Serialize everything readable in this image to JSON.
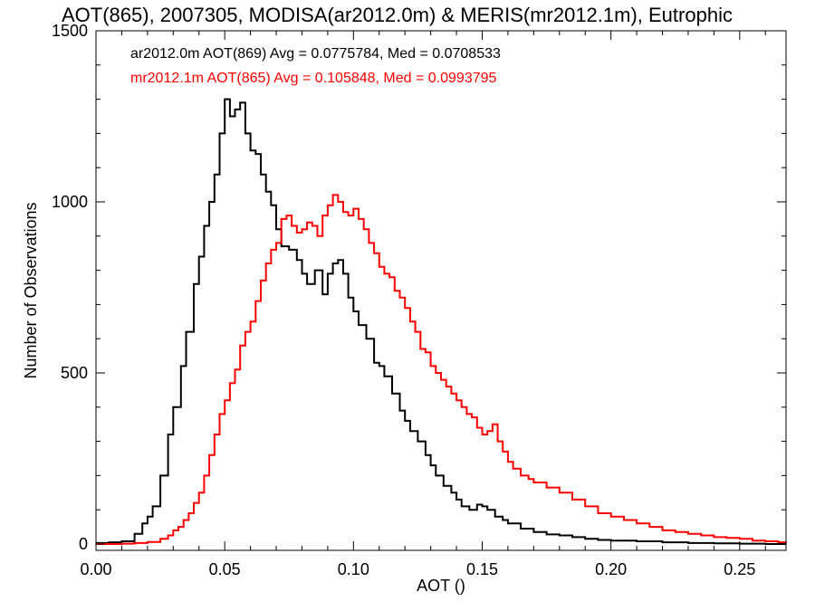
{
  "chart_data": {
    "type": "histogram",
    "title": "AOT(865), 2007305, MODISA(ar2012.0m) & MERIS(mr2012.1m), Eutrophic",
    "xlabel": "AOT ()",
    "ylabel": "Number of Observations",
    "xlim": [
      0.0,
      0.268
    ],
    "ylim": [
      0,
      1500
    ],
    "xticks": [
      0.0,
      0.05,
      0.1,
      0.15,
      0.2,
      0.25
    ],
    "xtick_labels": [
      "0.00",
      "0.05",
      "0.10",
      "0.15",
      "0.20",
      "0.25"
    ],
    "yticks": [
      0,
      500,
      1000,
      1500
    ],
    "ytick_labels": [
      "0",
      "500",
      "1000",
      "1500"
    ],
    "grid": false,
    "legend": [
      {
        "text": "ar2012.0m AOT(869) Avg = 0.0775784, Med = 0.0708533",
        "color": "#000000"
      },
      {
        "text": "mr2012.1m AOT(865) Avg = 0.105848, Med = 0.0993795",
        "color": "#ff0000"
      }
    ],
    "series": [
      {
        "color": "#000000",
        "points": [
          [
            0.0,
            3
          ],
          [
            0.005,
            5
          ],
          [
            0.01,
            8
          ],
          [
            0.015,
            30
          ],
          [
            0.018,
            60
          ],
          [
            0.02,
            80
          ],
          [
            0.022,
            110
          ],
          [
            0.025,
            200
          ],
          [
            0.028,
            320
          ],
          [
            0.03,
            400
          ],
          [
            0.033,
            520
          ],
          [
            0.035,
            620
          ],
          [
            0.038,
            760
          ],
          [
            0.04,
            840
          ],
          [
            0.042,
            930
          ],
          [
            0.044,
            1000
          ],
          [
            0.046,
            1080
          ],
          [
            0.048,
            1200
          ],
          [
            0.05,
            1300
          ],
          [
            0.052,
            1250
          ],
          [
            0.054,
            1270
          ],
          [
            0.056,
            1290
          ],
          [
            0.058,
            1200
          ],
          [
            0.06,
            1150
          ],
          [
            0.062,
            1140
          ],
          [
            0.064,
            1080
          ],
          [
            0.066,
            1030
          ],
          [
            0.068,
            990
          ],
          [
            0.07,
            920
          ],
          [
            0.072,
            870
          ],
          [
            0.075,
            860
          ],
          [
            0.078,
            830
          ],
          [
            0.08,
            790
          ],
          [
            0.082,
            760
          ],
          [
            0.085,
            800
          ],
          [
            0.088,
            730
          ],
          [
            0.09,
            790
          ],
          [
            0.092,
            820
          ],
          [
            0.094,
            830
          ],
          [
            0.096,
            790
          ],
          [
            0.098,
            720
          ],
          [
            0.1,
            680
          ],
          [
            0.102,
            640
          ],
          [
            0.105,
            600
          ],
          [
            0.108,
            530
          ],
          [
            0.11,
            520
          ],
          [
            0.112,
            490
          ],
          [
            0.115,
            440
          ],
          [
            0.118,
            390
          ],
          [
            0.12,
            360
          ],
          [
            0.122,
            330
          ],
          [
            0.125,
            300
          ],
          [
            0.128,
            260
          ],
          [
            0.13,
            230
          ],
          [
            0.132,
            200
          ],
          [
            0.135,
            170
          ],
          [
            0.138,
            150
          ],
          [
            0.14,
            130
          ],
          [
            0.142,
            110
          ],
          [
            0.145,
            100
          ],
          [
            0.148,
            115
          ],
          [
            0.15,
            110
          ],
          [
            0.152,
            100
          ],
          [
            0.155,
            80
          ],
          [
            0.158,
            70
          ],
          [
            0.16,
            60
          ],
          [
            0.165,
            45
          ],
          [
            0.17,
            35
          ],
          [
            0.175,
            28
          ],
          [
            0.18,
            25
          ],
          [
            0.185,
            20
          ],
          [
            0.19,
            15
          ],
          [
            0.195,
            12
          ],
          [
            0.2,
            10
          ],
          [
            0.21,
            8
          ],
          [
            0.22,
            5
          ],
          [
            0.23,
            3
          ],
          [
            0.24,
            2
          ],
          [
            0.25,
            1
          ],
          [
            0.26,
            0
          ]
        ]
      },
      {
        "color": "#ff0000",
        "points": [
          [
            0.0,
            0
          ],
          [
            0.01,
            1
          ],
          [
            0.015,
            3
          ],
          [
            0.02,
            6
          ],
          [
            0.025,
            15
          ],
          [
            0.028,
            25
          ],
          [
            0.03,
            40
          ],
          [
            0.032,
            50
          ],
          [
            0.034,
            70
          ],
          [
            0.036,
            90
          ],
          [
            0.038,
            120
          ],
          [
            0.04,
            150
          ],
          [
            0.042,
            200
          ],
          [
            0.044,
            260
          ],
          [
            0.046,
            320
          ],
          [
            0.048,
            380
          ],
          [
            0.05,
            420
          ],
          [
            0.052,
            470
          ],
          [
            0.054,
            510
          ],
          [
            0.056,
            580
          ],
          [
            0.058,
            620
          ],
          [
            0.06,
            650
          ],
          [
            0.062,
            710
          ],
          [
            0.064,
            770
          ],
          [
            0.066,
            820
          ],
          [
            0.068,
            860
          ],
          [
            0.07,
            880
          ],
          [
            0.072,
            950
          ],
          [
            0.074,
            960
          ],
          [
            0.076,
            930
          ],
          [
            0.078,
            910
          ],
          [
            0.08,
            920
          ],
          [
            0.082,
            940
          ],
          [
            0.084,
            930
          ],
          [
            0.086,
            900
          ],
          [
            0.088,
            960
          ],
          [
            0.09,
            990
          ],
          [
            0.092,
            1020
          ],
          [
            0.094,
            1000
          ],
          [
            0.096,
            970
          ],
          [
            0.098,
            960
          ],
          [
            0.1,
            980
          ],
          [
            0.102,
            950
          ],
          [
            0.104,
            920
          ],
          [
            0.106,
            880
          ],
          [
            0.108,
            850
          ],
          [
            0.11,
            810
          ],
          [
            0.112,
            790
          ],
          [
            0.114,
            780
          ],
          [
            0.116,
            740
          ],
          [
            0.118,
            720
          ],
          [
            0.12,
            690
          ],
          [
            0.122,
            650
          ],
          [
            0.124,
            620
          ],
          [
            0.126,
            570
          ],
          [
            0.128,
            560
          ],
          [
            0.13,
            520
          ],
          [
            0.132,
            500
          ],
          [
            0.134,
            480
          ],
          [
            0.136,
            460
          ],
          [
            0.138,
            440
          ],
          [
            0.14,
            420
          ],
          [
            0.142,
            400
          ],
          [
            0.144,
            380
          ],
          [
            0.146,
            370
          ],
          [
            0.148,
            340
          ],
          [
            0.15,
            320
          ],
          [
            0.152,
            330
          ],
          [
            0.154,
            350
          ],
          [
            0.156,
            300
          ],
          [
            0.158,
            270
          ],
          [
            0.16,
            240
          ],
          [
            0.162,
            220
          ],
          [
            0.165,
            200
          ],
          [
            0.168,
            190
          ],
          [
            0.17,
            180
          ],
          [
            0.175,
            165
          ],
          [
            0.18,
            150
          ],
          [
            0.185,
            130
          ],
          [
            0.19,
            110
          ],
          [
            0.195,
            90
          ],
          [
            0.2,
            80
          ],
          [
            0.205,
            70
          ],
          [
            0.21,
            60
          ],
          [
            0.215,
            50
          ],
          [
            0.22,
            40
          ],
          [
            0.225,
            35
          ],
          [
            0.23,
            30
          ],
          [
            0.235,
            25
          ],
          [
            0.24,
            20
          ],
          [
            0.245,
            18
          ],
          [
            0.25,
            15
          ],
          [
            0.255,
            10
          ],
          [
            0.26,
            8
          ],
          [
            0.265,
            5
          ],
          [
            0.268,
            3
          ]
        ]
      }
    ]
  }
}
